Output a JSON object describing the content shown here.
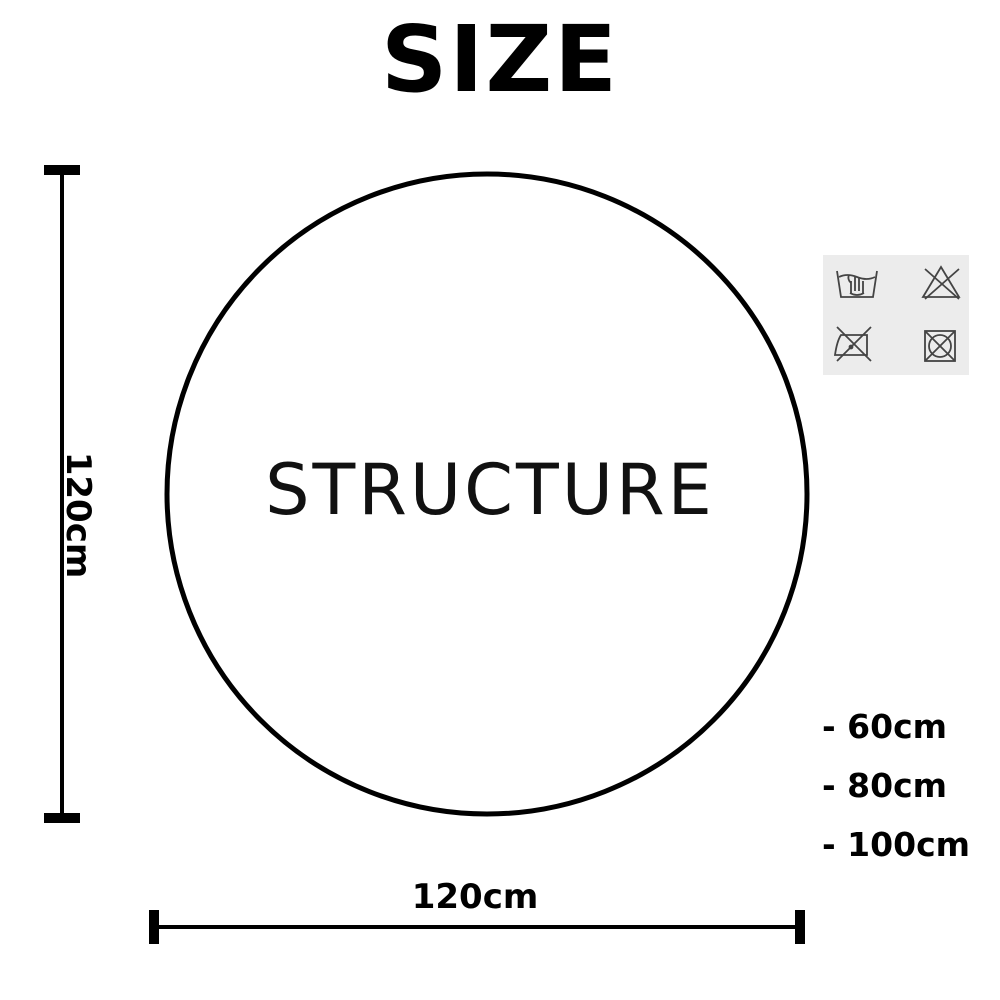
{
  "title": "SIZE",
  "center_label": "STRUCTURE",
  "dimensions": {
    "width_label": "120cm",
    "height_label": "120cm"
  },
  "size_options": [
    "- 60cm",
    "- 80cm",
    "- 100cm"
  ],
  "care_symbols": [
    {
      "icon": "hand-wash-icon"
    },
    {
      "icon": "do-not-bleach-icon"
    },
    {
      "icon": "do-not-iron-icon"
    },
    {
      "icon": "do-not-tumble-dry-icon"
    }
  ],
  "colors": {
    "line": "#000000",
    "background": "#ffffff",
    "care_panel": "#ececec"
  }
}
